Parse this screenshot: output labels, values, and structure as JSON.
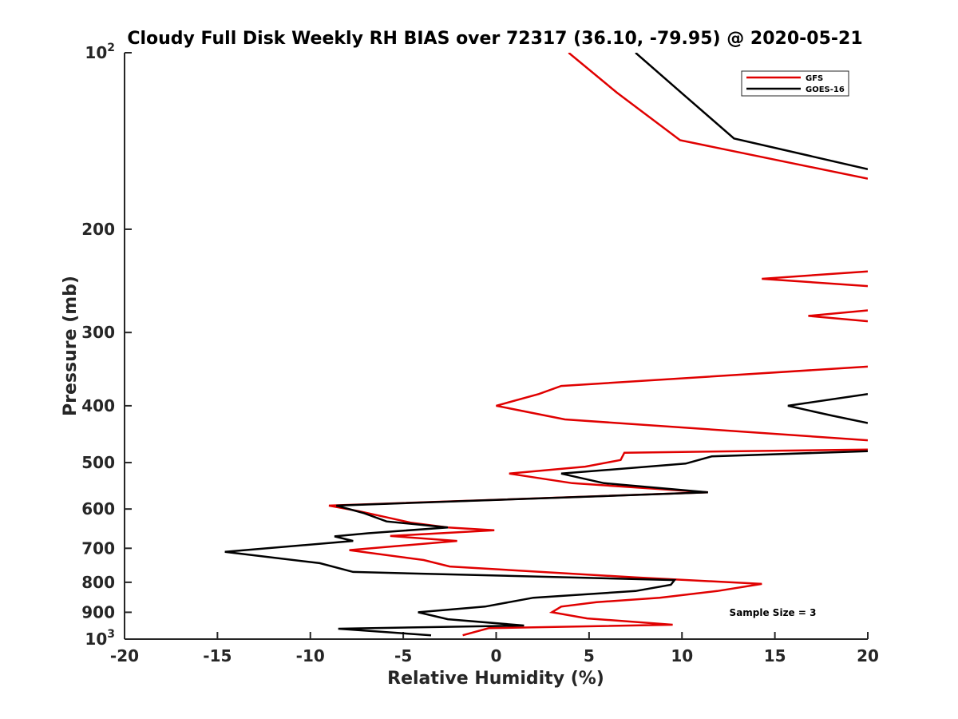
{
  "chart_data": {
    "type": "line",
    "title": "Cloudy Full Disk Weekly RH BIAS over 72317 (36.10, -79.95) @ 2020-05-21",
    "xlabel": "Relative Humidity (%)",
    "ylabel": "Pressure (mb)",
    "xlim": [
      -20,
      20
    ],
    "ylim": [
      100,
      1000
    ],
    "y_scale": "log",
    "y_reversed": true,
    "grid": false,
    "legend_position": "top-right",
    "x_ticks": [
      "-20",
      "-15",
      "-10",
      "-5",
      "0",
      "5",
      "10",
      "15",
      "20"
    ],
    "y_ticks": [
      {
        "value": 100,
        "base": "10",
        "exp": "2"
      },
      {
        "value": 200,
        "label": "200"
      },
      {
        "value": 300,
        "label": "300"
      },
      {
        "value": 400,
        "label": "400"
      },
      {
        "value": 500,
        "label": "500"
      },
      {
        "value": 600,
        "label": "600"
      },
      {
        "value": 700,
        "label": "700"
      },
      {
        "value": 800,
        "label": "800"
      },
      {
        "value": 900,
        "label": "900"
      },
      {
        "value": 1000,
        "base": "10",
        "exp": "3"
      }
    ],
    "annotation": "Sample Size = 3",
    "series": [
      {
        "name": "GFS",
        "color": "#e00000",
        "segments": [
          [
            [
              3.9,
              100
            ],
            [
              6.5,
              117
            ],
            [
              9.9,
              141
            ],
            [
              20,
              164
            ]
          ],
          [
            [
              20,
              236
            ],
            [
              14.3,
              243
            ],
            [
              20,
              250
            ]
          ],
          [
            [
              20,
              275
            ],
            [
              16.8,
              281
            ],
            [
              20,
              287
            ]
          ],
          [
            [
              20,
              343
            ],
            [
              3.5,
              370
            ],
            [
              2.3,
              382
            ],
            [
              0,
              400
            ],
            [
              3.7,
              422
            ],
            [
              20,
              458
            ]
          ],
          [
            [
              20,
              475
            ],
            [
              6.9,
              481
            ],
            [
              6.7,
              495
            ],
            [
              4.8,
              508
            ],
            [
              0.7,
              522
            ],
            [
              4.1,
              542
            ],
            [
              11.4,
              562
            ],
            [
              -9.0,
              592
            ],
            [
              -7.4,
              605
            ],
            [
              -4.6,
              633
            ],
            [
              -2.6,
              645
            ],
            [
              -0.1,
              652
            ],
            [
              -5.7,
              667
            ],
            [
              -2.1,
              680
            ],
            [
              -7.9,
              705
            ],
            [
              -3.9,
              733
            ],
            [
              -2.5,
              752
            ],
            [
              7.5,
              785
            ],
            [
              14.3,
              805
            ],
            [
              11.9,
              828
            ],
            [
              8.8,
              850
            ],
            [
              5.4,
              865
            ],
            [
              3.5,
              880
            ],
            [
              3.0,
              900
            ],
            [
              4.9,
              922
            ],
            [
              9.5,
              945
            ],
            [
              -0.4,
              958
            ],
            [
              -1.8,
              985
            ]
          ]
        ]
      },
      {
        "name": "GOES-16",
        "color": "#000000",
        "segments": [
          [
            [
              7.5,
              100
            ],
            [
              10.1,
              118
            ],
            [
              12.8,
              140
            ],
            [
              20,
              158
            ]
          ],
          [
            [
              20,
              382
            ],
            [
              15.7,
              400
            ],
            [
              18.1,
              416
            ],
            [
              20,
              428
            ]
          ],
          [
            [
              20,
              478
            ],
            [
              11.6,
              488
            ],
            [
              10.2,
              502
            ],
            [
              3.5,
              522
            ],
            [
              5.8,
              542
            ],
            [
              11.4,
              562
            ],
            [
              -8.6,
              592
            ],
            [
              -7.1,
              610
            ],
            [
              -5.9,
              630
            ],
            [
              -2.6,
              645
            ],
            [
              -6.9,
              660
            ],
            [
              -8.7,
              668
            ],
            [
              -7.7,
              680
            ],
            [
              -14.6,
              710
            ],
            [
              -9.5,
              742
            ],
            [
              -7.7,
              768
            ],
            [
              9.6,
              793
            ],
            [
              9.4,
              808
            ],
            [
              7.5,
              828
            ],
            [
              2.0,
              850
            ],
            [
              -0.6,
              880
            ],
            [
              -4.2,
              900
            ],
            [
              -2.6,
              925
            ],
            [
              1.5,
              948
            ],
            [
              -8.5,
              960
            ],
            [
              -3.5,
              985
            ]
          ]
        ]
      }
    ]
  }
}
